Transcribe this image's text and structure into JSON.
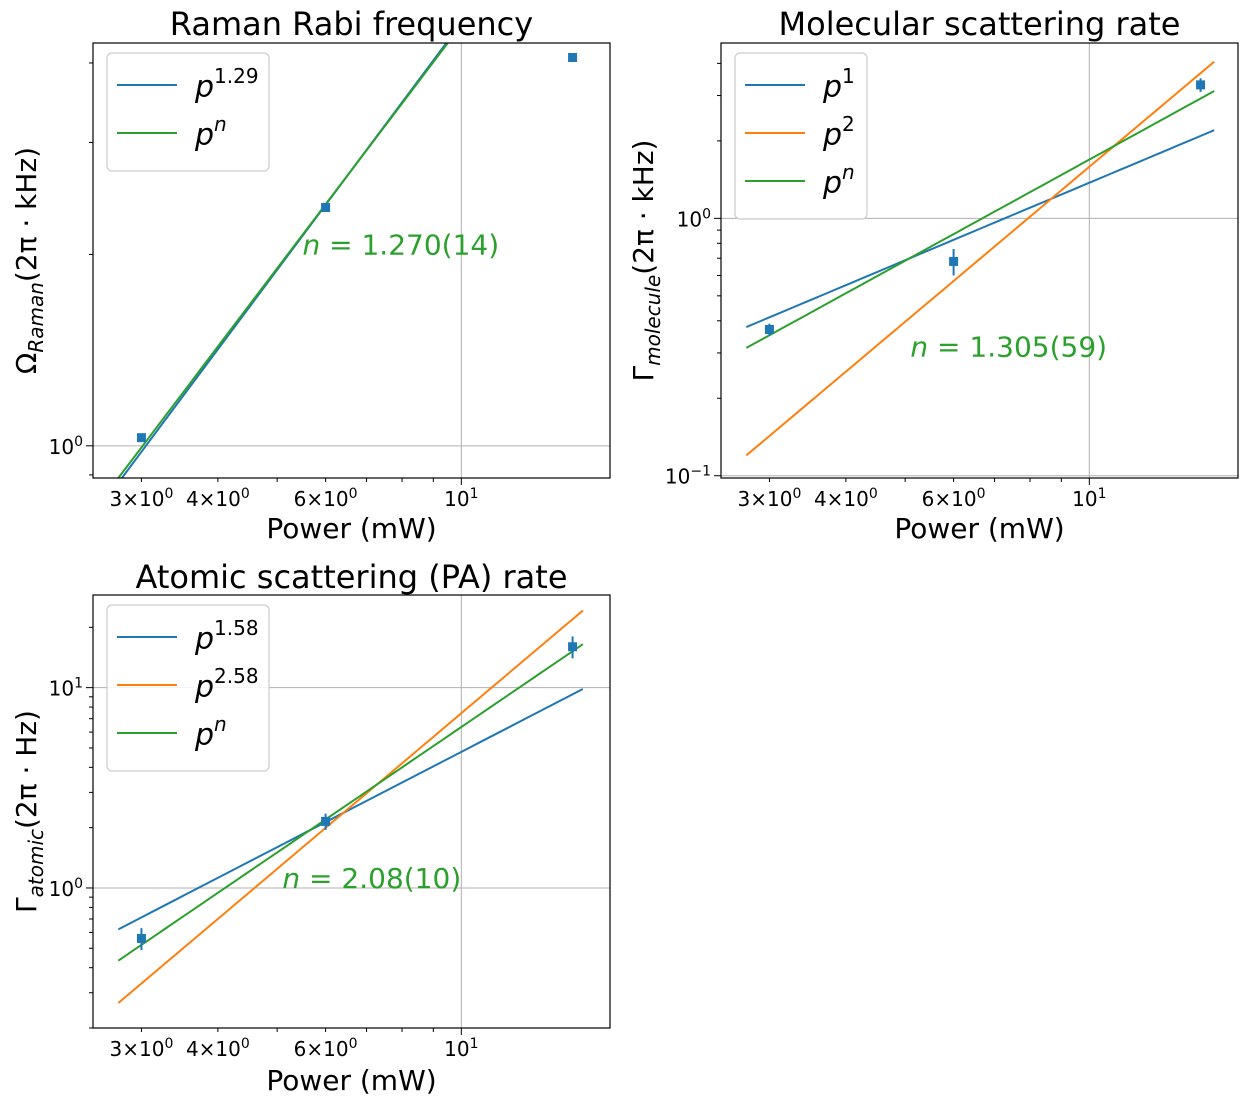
{
  "chart_data": [
    {
      "type": "line",
      "title": "Raman Rabi frequency",
      "xlabel": "Power (mW)",
      "ylabel": "Ω_Raman(2π · kHz)",
      "xscale": "log",
      "yscale": "log",
      "xlim": [
        2.5,
        17.5
      ],
      "ylim": [
        0.89,
        4.3
      ],
      "xticks": [
        {
          "value": 3,
          "mant": "3",
          "exp": "0"
        },
        {
          "value": 4,
          "mant": "4",
          "exp": "0"
        },
        {
          "value": 6,
          "mant": "6",
          "exp": "0"
        },
        {
          "value": 10,
          "mant": "",
          "exp": "1"
        }
      ],
      "yticks": [
        {
          "value": 1,
          "mant": "",
          "exp": "0"
        }
      ],
      "grid": true,
      "points": [
        {
          "x": 3.0,
          "y": 1.03,
          "err": 0.006
        },
        {
          "x": 6.0,
          "y": 2.37,
          "err": 0.015
        },
        {
          "x": 15.2,
          "y": 4.08,
          "err": 0.03
        }
      ],
      "series": [
        {
          "legend": "p",
          "legend_sup": "1.29",
          "color": "#1f77b4",
          "amp": 0.2372,
          "exp": 1.29,
          "xrange": [
            2.75,
            15.9
          ]
        },
        {
          "legend": "p",
          "legend_sup": "n",
          "color": "#2ca02c",
          "amp": 0.2463,
          "exp": 1.27,
          "xrange": [
            2.75,
            15.9
          ]
        }
      ],
      "legend_position": "upper left",
      "annotation": {
        "text": "n = 1.270(14)",
        "x": 5.5,
        "y": 2.0
      }
    },
    {
      "type": "line",
      "title": "Molecular scattering rate",
      "xlabel": "Power (mW)",
      "ylabel": "Γ_molecule(2π · kHz)",
      "xscale": "log",
      "yscale": "log",
      "xlim": [
        2.5,
        17.5
      ],
      "ylim": [
        0.098,
        4.8
      ],
      "xticks": [
        {
          "value": 3,
          "mant": "3",
          "exp": "0"
        },
        {
          "value": 4,
          "mant": "4",
          "exp": "0"
        },
        {
          "value": 6,
          "mant": "6",
          "exp": "0"
        },
        {
          "value": 10,
          "mant": "",
          "exp": "1"
        }
      ],
      "yticks": [
        {
          "value": 0.1,
          "mant": "",
          "exp": "−1"
        },
        {
          "value": 1,
          "mant": "",
          "exp": "0"
        }
      ],
      "grid": true,
      "points": [
        {
          "x": 3.0,
          "y": 0.37,
          "err": 0.02
        },
        {
          "x": 6.0,
          "y": 0.68,
          "err": 0.08
        },
        {
          "x": 15.2,
          "y": 3.3,
          "err": 0.2
        }
      ],
      "series": [
        {
          "legend": "p",
          "legend_sup": "1",
          "color": "#1f77b4",
          "amp": 0.1375,
          "exp": 1.0,
          "xrange": [
            2.75,
            16.0
          ]
        },
        {
          "legend": "p",
          "legend_sup": "2",
          "color": "#ff7f0e",
          "amp": 0.01586,
          "exp": 2.0,
          "xrange": [
            2.75,
            16.0
          ]
        },
        {
          "legend": "p",
          "legend_sup": "n",
          "color": "#2ca02c",
          "amp": 0.0838,
          "exp": 1.305,
          "xrange": [
            2.75,
            16.0
          ]
        }
      ],
      "legend_position": "upper left",
      "annotation": {
        "text": "n = 1.305(59)",
        "x": 5.1,
        "y": 0.29
      }
    },
    {
      "type": "line",
      "title": "Atomic scattering (PA) rate",
      "xlabel": "Power (mW)",
      "ylabel": "Γ_atomic(2π · Hz)",
      "xscale": "log",
      "yscale": "log",
      "xlim": [
        2.5,
        17.5
      ],
      "ylim": [
        0.2,
        29
      ],
      "xticks": [
        {
          "value": 3,
          "mant": "3",
          "exp": "0"
        },
        {
          "value": 4,
          "mant": "4",
          "exp": "0"
        },
        {
          "value": 6,
          "mant": "6",
          "exp": "0"
        },
        {
          "value": 10,
          "mant": "",
          "exp": "1"
        }
      ],
      "yticks": [
        {
          "value": 1,
          "mant": "",
          "exp": "0"
        },
        {
          "value": 10,
          "mant": "",
          "exp": "1"
        }
      ],
      "grid": true,
      "points": [
        {
          "x": 3.0,
          "y": 0.56,
          "err": 0.07
        },
        {
          "x": 6.0,
          "y": 2.15,
          "err": 0.2
        },
        {
          "x": 15.2,
          "y": 16.0,
          "err": 2.0
        }
      ],
      "series": [
        {
          "legend": "p",
          "legend_sup": "1.58",
          "color": "#1f77b4",
          "amp": 0.1257,
          "exp": 1.58,
          "xrange": [
            2.75,
            15.8
          ]
        },
        {
          "legend": "p",
          "legend_sup": "2.58",
          "color": "#ff7f0e",
          "amp": 0.0196,
          "exp": 2.58,
          "xrange": [
            2.75,
            15.8
          ]
        },
        {
          "legend": "p",
          "legend_sup": "n",
          "color": "#2ca02c",
          "amp": 0.0529,
          "exp": 2.08,
          "xrange": [
            2.75,
            15.8
          ]
        }
      ],
      "legend_position": "upper left",
      "annotation": {
        "text": "n = 2.08(10)",
        "x": 5.1,
        "y": 1.0
      }
    }
  ]
}
